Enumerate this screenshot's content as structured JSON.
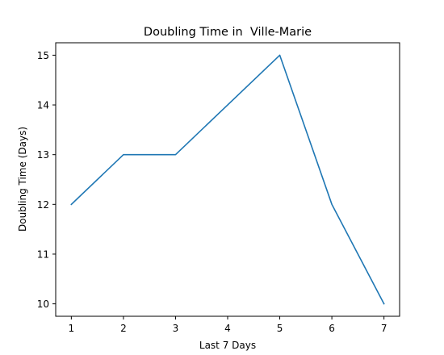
{
  "chart_data": {
    "type": "line",
    "title": "Doubling Time in  Ville-Marie",
    "xlabel": "Last 7 Days",
    "ylabel": "Doubling Time (Days)",
    "x": [
      1,
      2,
      3,
      4,
      5,
      6,
      7
    ],
    "xticks": [
      "1",
      "2",
      "3",
      "4",
      "5",
      "6",
      "7"
    ],
    "yticks": [
      "10",
      "11",
      "12",
      "13",
      "14",
      "15"
    ],
    "xlim": [
      0.7,
      7.3
    ],
    "ylim": [
      9.75,
      15.25
    ],
    "grid": false,
    "series": [
      {
        "values": [
          12,
          13,
          13,
          14,
          15,
          12,
          10
        ],
        "color": "#1f77b4"
      }
    ]
  }
}
